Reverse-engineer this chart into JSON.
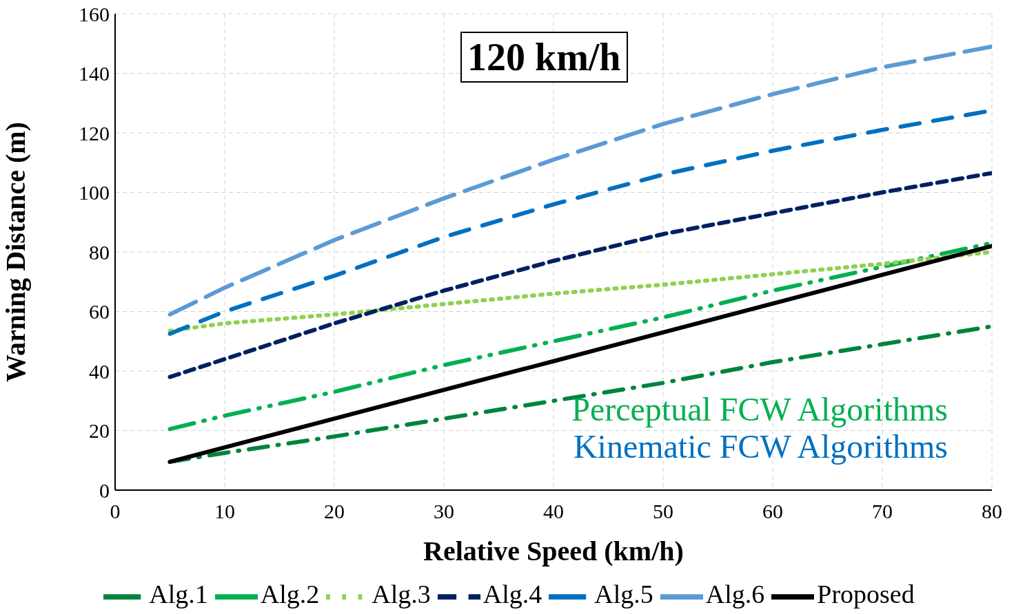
{
  "chart_data": {
    "type": "line",
    "title": "120 km/h",
    "xlabel": "Relative Speed (km/h)",
    "ylabel": "Warning  Distance (m)",
    "xlim": [
      0,
      80
    ],
    "xticks": [
      0,
      10,
      20,
      30,
      40,
      50,
      60,
      70,
      80
    ],
    "ylim": [
      0,
      160
    ],
    "yticks": [
      0,
      20,
      40,
      60,
      80,
      100,
      120,
      140,
      160
    ],
    "grid": true,
    "legend": "bottom",
    "marker": "none",
    "annotations": [
      "Perceptual FCW Algorithms",
      "Kinematic FCW Algorithms"
    ],
    "series": [
      {
        "name": "Alg.1",
        "color": "#00843d",
        "line_style": "dashed",
        "x": [
          5,
          10,
          20,
          30,
          40,
          50,
          60,
          70,
          80
        ],
        "values": [
          9.5,
          12.5,
          18,
          24,
          30,
          36,
          43,
          49,
          55
        ]
      },
      {
        "name": "Alg.2",
        "color": "#00b050",
        "line_style": "dashed",
        "x": [
          5,
          10,
          20,
          30,
          40,
          50,
          60,
          70,
          80
        ],
        "values": [
          20.5,
          25,
          33,
          42,
          50,
          58,
          67,
          75,
          83
        ]
      },
      {
        "name": "Alg.3",
        "color": "#92d050",
        "line_style": "dotted",
        "x": [
          5,
          10,
          20,
          30,
          40,
          50,
          60,
          70,
          80
        ],
        "values": [
          53.5,
          56,
          59,
          62.5,
          66,
          69,
          72.5,
          76,
          80
        ]
      },
      {
        "name": "Alg.4",
        "color": "#002060",
        "line_style": "dashed",
        "x": [
          5,
          10,
          20,
          30,
          40,
          50,
          60,
          70,
          80
        ],
        "values": [
          38,
          44,
          56,
          67,
          77,
          86,
          93,
          100,
          106.5
        ]
      },
      {
        "name": "Alg.5",
        "color": "#0070c0",
        "line_style": "dashed",
        "x": [
          5,
          10,
          20,
          30,
          40,
          50,
          60,
          70,
          80
        ],
        "values": [
          52.5,
          60,
          72,
          85,
          96,
          106,
          114,
          121,
          127.5
        ]
      },
      {
        "name": "Alg.6",
        "color": "#5b9bd5",
        "line_style": "dashed",
        "x": [
          5,
          10,
          20,
          30,
          40,
          50,
          60,
          70,
          80
        ],
        "values": [
          59,
          68,
          84,
          98,
          111,
          123,
          133,
          142,
          149
        ]
      },
      {
        "name": "Proposed",
        "color": "#000000",
        "line_style": "solid",
        "x": [
          5,
          40,
          80
        ],
        "values": [
          9.5,
          43.3,
          82
        ]
      }
    ]
  }
}
